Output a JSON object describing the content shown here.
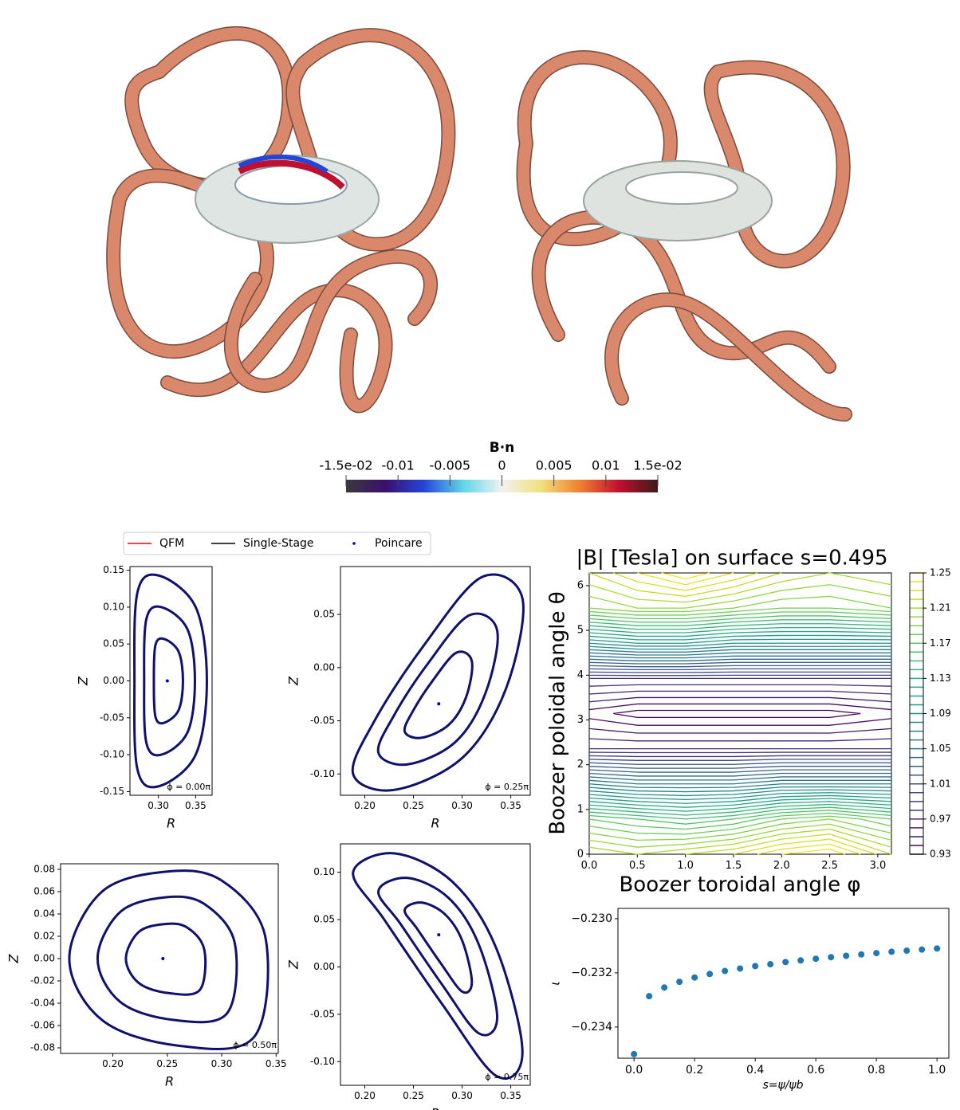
{
  "chart_data": [
    {
      "type": "colorbar",
      "title": "B·n",
      "lim": [
        -0.015,
        0.015
      ],
      "ticks": [
        {
          "value": -0.015,
          "label": "-1.5e-02"
        },
        -0.01,
        -0.005,
        0,
        0.005,
        0.01,
        {
          "value": 0.015,
          "label": "1.5e-02"
        }
      ],
      "colors": [
        "#3a3a3a",
        "#3b0f70",
        "#2446d8",
        "#5fd5e8",
        "#f2f2f2",
        "#f2e07a",
        "#f08030",
        "#c01030",
        "#3a1a1a"
      ]
    },
    {
      "type": "legend",
      "series": [
        {
          "name": "QFM",
          "color": "#ff0000"
        },
        {
          "name": "Single-Stage",
          "color": "#000000"
        },
        {
          "name": "Poincare",
          "color": "#0000cc"
        }
      ]
    },
    {
      "type": "poincare",
      "xlabel": "R",
      "ylabel": "Z",
      "annotation": "ϕ = 0.00π",
      "color": "#10106e",
      "xlim": [
        0.262,
        0.372
      ],
      "ylim": [
        -0.155,
        0.155
      ],
      "xticks": [
        {
          "value": 0.3,
          "label": "0.30"
        },
        0.35
      ],
      "yticks": [
        -0.15,
        {
          "value": -0.1,
          "label": "-0.10"
        },
        -0.05,
        {
          "value": 0,
          "label": "0.00"
        },
        0.05,
        {
          "value": 0.1,
          "label": "0.10"
        },
        0.15
      ],
      "axis_point": {
        "x": 0.312,
        "y": 0
      },
      "surfaces": [
        {
          "x": [
            0.365,
            0.35,
            0.3,
            0.272,
            0.268,
            0.272,
            0.3,
            0.35
          ],
          "y": [
            0,
            0.1,
            0.143,
            0.12,
            0,
            -0.12,
            -0.143,
            -0.1
          ]
        },
        {
          "x": [
            0.349,
            0.339,
            0.304,
            0.284,
            0.281,
            0.284,
            0.304,
            0.339
          ],
          "y": [
            0,
            0.07,
            0.1,
            0.084,
            0,
            -0.084,
            -0.1,
            -0.07
          ]
        },
        {
          "x": [
            0.333,
            0.327,
            0.307,
            0.296,
            0.294,
            0.296,
            0.307,
            0.327
          ],
          "y": [
            0,
            0.04,
            0.057,
            0.048,
            0,
            -0.048,
            -0.057,
            -0.04
          ]
        }
      ]
    },
    {
      "type": "poincare",
      "xlabel": "R",
      "ylabel": "Z",
      "annotation": "ϕ = 0.25π",
      "color": "#10106e",
      "xlim": [
        0.175,
        0.37
      ],
      "ylim": [
        -0.12,
        0.095
      ],
      "xticks": [
        {
          "value": 0.2,
          "label": "0.20"
        },
        0.25,
        {
          "value": 0.3,
          "label": "0.30"
        },
        0.35
      ],
      "yticks": [
        {
          "value": -0.1,
          "label": "-0.10"
        },
        -0.05,
        {
          "value": 0,
          "label": "0.00"
        },
        0.05
      ],
      "axis_point": {
        "x": 0.276,
        "y": -0.034
      },
      "surfaces": [
        {
          "x": [
            0.362,
            0.345,
            0.3,
            0.23,
            0.188,
            0.21,
            0.26,
            0.32
          ],
          "y": [
            0.065,
            -0.02,
            -0.085,
            -0.115,
            -0.1,
            -0.05,
            0.02,
            0.085
          ]
        },
        {
          "x": [
            0.336,
            0.324,
            0.293,
            0.244,
            0.214,
            0.23,
            0.265,
            0.307
          ],
          "y": [
            0.035,
            -0.024,
            -0.07,
            -0.091,
            -0.08,
            -0.045,
            0.004,
            0.049
          ]
        },
        {
          "x": [
            0.31,
            0.304,
            0.286,
            0.258,
            0.241,
            0.25,
            0.27,
            0.294
          ],
          "y": [
            0.006,
            -0.028,
            -0.054,
            -0.066,
            -0.06,
            -0.04,
            -0.012,
            0.014
          ]
        }
      ]
    },
    {
      "type": "poincare",
      "xlabel": "R",
      "ylabel": "Z",
      "annotation": "ϕ = 0.50π",
      "color": "#10106e",
      "xlim": [
        0.152,
        0.352
      ],
      "ylim": [
        -0.085,
        0.085
      ],
      "xticks": [
        {
          "value": 0.2,
          "label": "0.20"
        },
        0.25,
        {
          "value": 0.3,
          "label": "0.30"
        },
        0.35
      ],
      "yticks": [
        {
          "value": -0.08,
          "label": "-0.08"
        },
        {
          "value": -0.06,
          "label": "-0.06"
        },
        {
          "value": -0.04,
          "label": "-0.04"
        },
        {
          "value": -0.02,
          "label": "-0.02"
        },
        {
          "value": 0,
          "label": "0.00"
        },
        {
          "value": 0.02,
          "label": "0.02"
        },
        {
          "value": 0.04,
          "label": "0.04"
        },
        {
          "value": 0.06,
          "label": "0.06"
        },
        {
          "value": 0.08,
          "label": "0.08"
        }
      ],
      "axis_point": {
        "x": 0.246,
        "y": 0
      },
      "surfaces": [
        {
          "x": [
            0.34,
            0.3,
            0.25,
            0.19,
            0.16,
            0.19,
            0.26,
            0.33
          ],
          "y": [
            0.02,
            0.07,
            0.078,
            0.06,
            0,
            -0.055,
            -0.078,
            -0.07
          ]
        },
        {
          "x": [
            0.312,
            0.284,
            0.249,
            0.207,
            0.186,
            0.207,
            0.256,
            0.305
          ],
          "y": [
            0.014,
            0.049,
            0.055,
            0.042,
            0,
            -0.039,
            -0.055,
            -0.049
          ]
        },
        {
          "x": [
            0.284,
            0.268,
            0.248,
            0.224,
            0.212,
            0.224,
            0.252,
            0.28
          ],
          "y": [
            0.008,
            0.028,
            0.031,
            0.024,
            0,
            -0.022,
            -0.031,
            -0.028
          ]
        }
      ]
    },
    {
      "type": "poincare",
      "xlabel": "R",
      "ylabel": "Z",
      "annotation": "ϕ = 0.75π",
      "color": "#10106e",
      "xlim": [
        0.175,
        0.37
      ],
      "ylim": [
        -0.125,
        0.13
      ],
      "xticks": [
        {
          "value": 0.2,
          "label": "0.20"
        },
        0.25,
        {
          "value": 0.3,
          "label": "0.30"
        },
        0.35
      ],
      "yticks": [
        {
          "value": -0.1,
          "label": "-0.10"
        },
        -0.05,
        {
          "value": 0,
          "label": "0.00"
        },
        0.05,
        {
          "value": 0.1,
          "label": "0.10"
        }
      ],
      "axis_point": {
        "x": 0.276,
        "y": 0.034
      },
      "surfaces": [
        {
          "x": [
            0.188,
            0.23,
            0.29,
            0.335,
            0.362,
            0.335,
            0.28,
            0.22
          ],
          "y": [
            0.1,
            0.12,
            0.09,
            0.02,
            -0.09,
            -0.115,
            -0.04,
            0.05
          ]
        },
        {
          "x": [
            0.214,
            0.244,
            0.286,
            0.317,
            0.336,
            0.317,
            0.279,
            0.237
          ],
          "y": [
            0.08,
            0.094,
            0.073,
            0.024,
            -0.053,
            -0.07,
            -0.018,
            0.045
          ]
        },
        {
          "x": [
            0.241,
            0.258,
            0.282,
            0.3,
            0.31,
            0.3,
            0.278,
            0.254
          ],
          "y": [
            0.06,
            0.068,
            0.056,
            0.028,
            -0.016,
            -0.026,
            0.004,
            0.04
          ]
        }
      ]
    },
    {
      "type": "contour",
      "title": "|B| [Tesla] on surface s=0.495",
      "xlabel": "Boozer toroidal angle φ",
      "ylabel": "Boozer poloidal angle θ",
      "colormap": "viridis",
      "xlim": [
        0,
        3.1416
      ],
      "ylim": [
        0,
        6.2832
      ],
      "xticks": [
        {
          "value": 0,
          "label": "0.0"
        },
        0.5,
        {
          "value": 1,
          "label": "1.0"
        },
        1.5,
        {
          "value": 2,
          "label": "2.0"
        },
        2.5,
        {
          "value": 3,
          "label": "3.0"
        }
      ],
      "yticks": [
        0,
        1,
        2,
        3,
        4,
        5,
        6
      ],
      "clim": [
        0.93,
        1.25
      ],
      "cticks": [
        0.93,
        0.97,
        1.01,
        1.05,
        1.09,
        1.13,
        1.17,
        1.21,
        1.25
      ],
      "levels": [
        0.93,
        0.94,
        0.95,
        0.96,
        0.97,
        0.98,
        0.99,
        1.0,
        1.01,
        1.02,
        1.03,
        1.04,
        1.05,
        1.06,
        1.07,
        1.08,
        1.09,
        1.1,
        1.11,
        1.12,
        1.13,
        1.14,
        1.15,
        1.16,
        1.17,
        1.18,
        1.19,
        1.2,
        1.21,
        1.22,
        1.23,
        1.24,
        1.25
      ],
      "x": [
        0,
        0.5,
        1,
        1.5,
        2,
        2.5,
        3.1416
      ],
      "y": [
        0,
        0.785,
        1.571,
        2.356,
        3.142,
        3.927,
        4.712,
        5.498,
        6.283
      ],
      "z": [
        [
          1.22,
          1.21,
          1.22,
          1.23,
          1.25,
          1.26,
          1.22
        ],
        [
          1.17,
          1.16,
          1.15,
          1.16,
          1.18,
          1.19,
          1.17
        ],
        [
          1.07,
          1.06,
          1.06,
          1.06,
          1.07,
          1.07,
          1.07
        ],
        [
          0.97,
          0.97,
          0.97,
          0.97,
          0.97,
          0.97,
          0.97
        ],
        [
          0.935,
          0.925,
          0.925,
          0.925,
          0.925,
          0.925,
          0.935
        ],
        [
          0.98,
          0.98,
          0.98,
          0.98,
          0.98,
          0.98,
          0.98
        ],
        [
          1.09,
          1.1,
          1.1,
          1.09,
          1.09,
          1.09,
          1.09
        ],
        [
          1.19,
          1.2,
          1.2,
          1.19,
          1.18,
          1.18,
          1.19
        ],
        [
          1.22,
          1.24,
          1.26,
          1.24,
          1.22,
          1.21,
          1.22
        ]
      ]
    },
    {
      "type": "scatter",
      "xlabel": "s=ψ/ψb",
      "ylabel": "ι",
      "color": "#1f77b4",
      "xlim": [
        -0.053,
        1.039
      ],
      "ylim": [
        -0.23515,
        -0.22962
      ],
      "xticks": [
        {
          "value": 0,
          "label": "0.0"
        },
        0.2,
        0.4,
        0.6,
        0.8,
        {
          "value": 1,
          "label": "1.0"
        }
      ],
      "yticks": [
        {
          "value": -0.234,
          "label": "−0.234"
        },
        {
          "value": -0.232,
          "label": "−0.232"
        },
        {
          "value": -0.23,
          "label": "−0.230"
        }
      ],
      "x": [
        0,
        0.05,
        0.1,
        0.15,
        0.2,
        0.25,
        0.3,
        0.35,
        0.4,
        0.45,
        0.5,
        0.55,
        0.6,
        0.65,
        0.7,
        0.75,
        0.8,
        0.85,
        0.9,
        0.95,
        1
      ],
      "values": [
        -0.235,
        -0.23286,
        -0.23254,
        -0.23233,
        -0.23217,
        -0.23204,
        -0.23193,
        -0.23184,
        -0.23175,
        -0.23168,
        -0.2316,
        -0.23154,
        -0.23148,
        -0.23142,
        -0.23137,
        -0.23132,
        -0.23127,
        -0.23122,
        -0.23118,
        -0.23114,
        -0.2311
      ]
    }
  ]
}
